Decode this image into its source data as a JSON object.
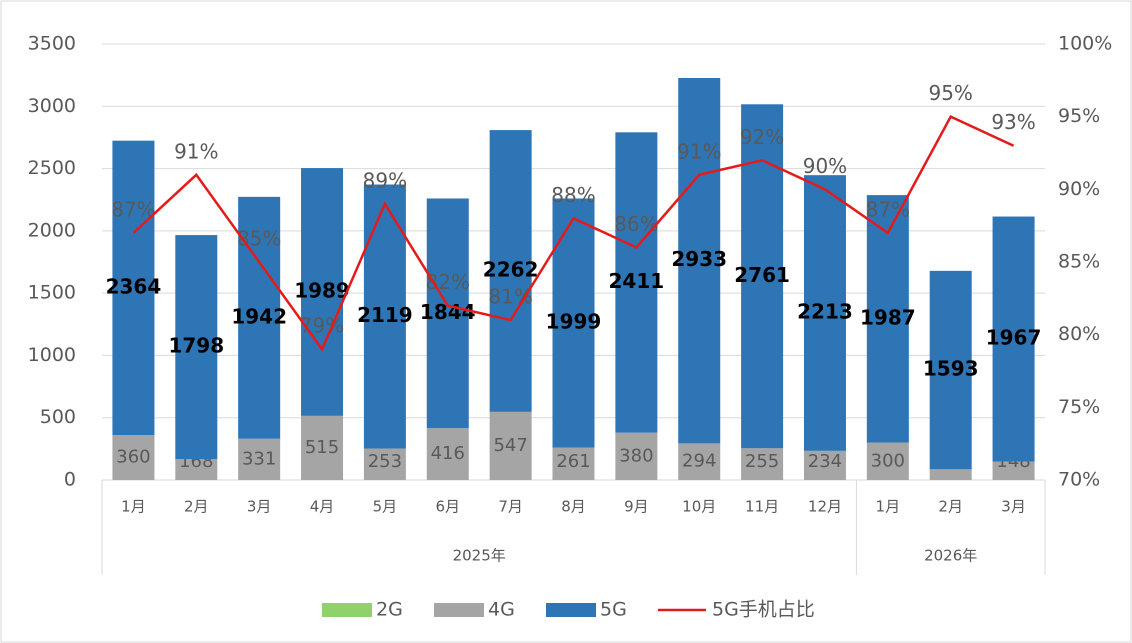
{
  "chart_data": {
    "type": "bar-line",
    "groups": [
      {
        "name": "2025年",
        "categories": [
          "1月",
          "2月",
          "3月",
          "4月",
          "5月",
          "6月",
          "7月",
          "8月",
          "9月",
          "10月",
          "11月",
          "12月"
        ]
      },
      {
        "name": "2026年",
        "categories": [
          "1月",
          "2月",
          "3月"
        ]
      }
    ],
    "series": [
      {
        "name": "2G",
        "color": "#8fd16a",
        "values": [
          0,
          0,
          0,
          0,
          0,
          0,
          0,
          0,
          0,
          0,
          0,
          0,
          0,
          0,
          0
        ]
      },
      {
        "name": "4G",
        "color": "#a5a5a5",
        "values": [
          360,
          168,
          331,
          515,
          253,
          416,
          547,
          261,
          380,
          294,
          255,
          234,
          300,
          86,
          148
        ]
      },
      {
        "name": "5G",
        "color": "#2e75b6",
        "values": [
          2364,
          1798,
          1942,
          1989,
          2119,
          1844,
          2262,
          1999,
          2411,
          2933,
          2761,
          2213,
          1987,
          1593,
          1967
        ]
      },
      {
        "name": "5G手机占比",
        "color": "#e31b1b",
        "axis": "y2",
        "type": "line",
        "values": [
          87,
          91,
          85,
          79,
          89,
          82,
          81,
          88,
          86,
          91,
          92,
          90,
          87,
          95,
          93
        ],
        "value_labels": [
          "87%",
          "91%",
          "85%",
          "79%",
          "89%",
          "82%",
          "81%",
          "88%",
          "86%",
          "91%",
          "92%",
          "90%",
          "87%",
          "95%",
          "93%"
        ]
      }
    ],
    "ylim": [
      0,
      3500
    ],
    "yticks": [
      0,
      500,
      1000,
      1500,
      2000,
      2500,
      3000,
      3500
    ],
    "y2lim": [
      70,
      100
    ],
    "y2ticks": [
      {
        "value": 70,
        "label": "70%"
      },
      {
        "value": 75,
        "label": "75%"
      },
      {
        "value": 80,
        "label": "80%"
      },
      {
        "value": 85,
        "label": "85%"
      },
      {
        "value": 90,
        "label": "90%"
      },
      {
        "value": 95,
        "label": "95%"
      },
      {
        "value": 100,
        "label": "100%"
      }
    ],
    "grid": true,
    "legend": "bottom"
  }
}
